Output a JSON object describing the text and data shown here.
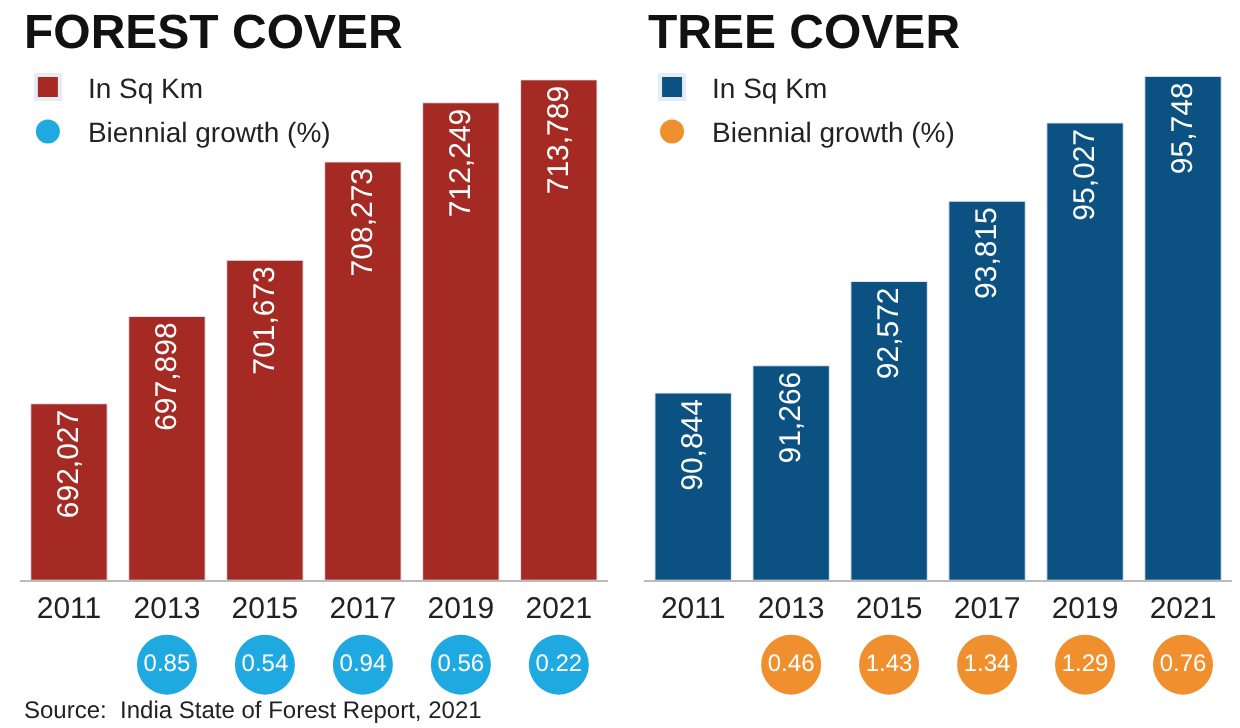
{
  "chart_data": [
    {
      "type": "bar",
      "title": "FOREST COVER",
      "categories": [
        "2011",
        "2013",
        "2015",
        "2017",
        "2019",
        "2021"
      ],
      "series": [
        {
          "name": "In Sq Km",
          "color": "#a52a24",
          "values": [
            692027,
            697898,
            701673,
            708273,
            712249,
            713789
          ],
          "value_labels": [
            "692,027",
            "697,898",
            "701,673",
            "708,273",
            "712,249",
            "713,789"
          ]
        }
      ],
      "ylim": [
        680200,
        713789
      ],
      "tick_labels": "x",
      "legend": "top left",
      "annotations": [
        "Source:  India State of Forest Report, 2021"
      ]
    },
    {
      "type": "other",
      "categories": [
        null,
        null,
        null,
        null,
        null,
        null
      ],
      "series": [
        {
          "name": "Biennial growth (%)",
          "color": "#1fa9e1",
          "values": [
            null,
            0.85,
            0.54,
            0.94,
            0.56,
            0.22
          ]
        }
      ],
      "data_labels": true,
      "legend": "top left"
    },
    {
      "type": "bar",
      "title": "TREE COVER",
      "categories": [
        "2011",
        "2013",
        "2015",
        "2017",
        "2019",
        "2021"
      ],
      "series": [
        {
          "name": "In Sq Km",
          "color": "#0b5282",
          "values": [
            90844,
            91266,
            92572,
            93815,
            95027,
            95748
          ],
          "value_labels": [
            "90,844",
            "91,266",
            "92,572",
            "93,815",
            "95,027",
            "95,748"
          ]
        }
      ],
      "ylim": [
        87950,
        95748
      ],
      "tick_labels": "x",
      "legend": "top left"
    },
    {
      "type": "other",
      "categories": [
        null,
        null,
        null,
        null,
        null,
        null
      ],
      "series": [
        {
          "name": "Biennial growth (%)",
          "color": "#ef8f2d",
          "values": [
            null,
            0.46,
            1.43,
            1.34,
            1.29,
            0.76
          ]
        }
      ],
      "data_labels": true,
      "legend": "top left"
    }
  ]
}
